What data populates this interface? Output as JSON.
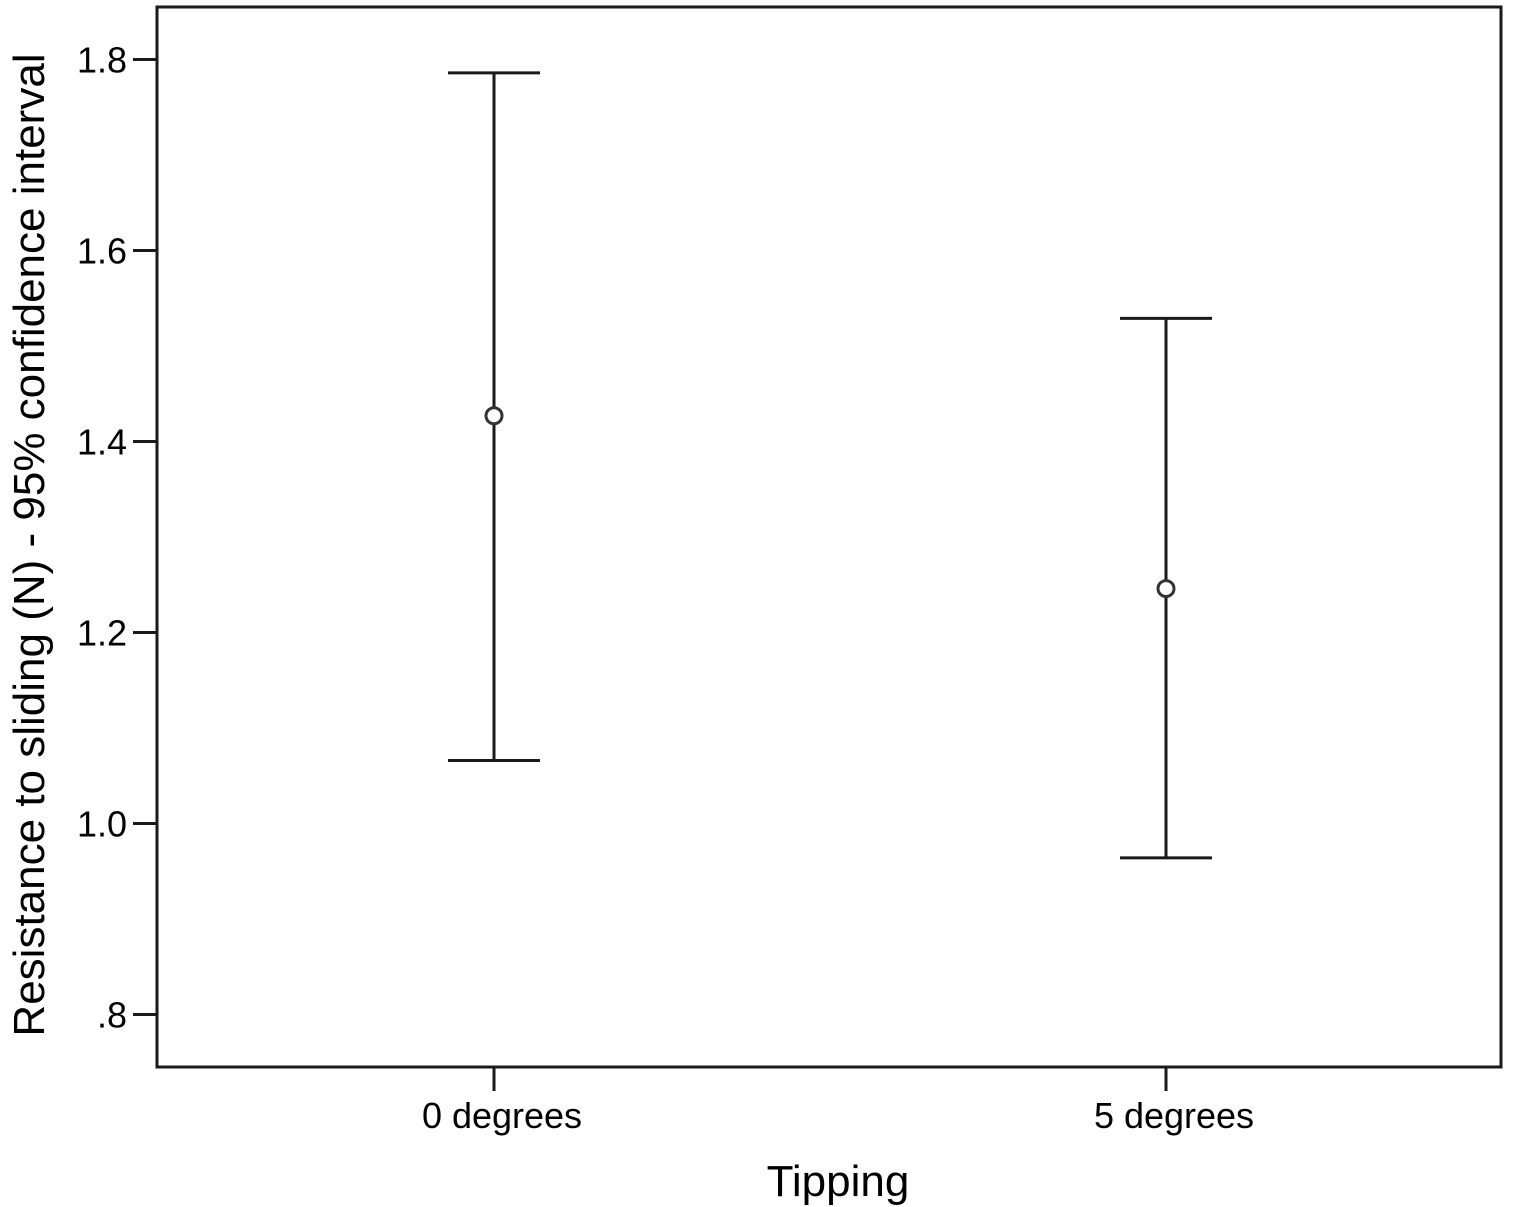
{
  "chart_data": {
    "type": "errorbar",
    "title": "",
    "xlabel": "Tipping",
    "ylabel": "Resistance to sliding (N) - 95% confidence interval",
    "categories": [
      "0 degrees",
      "5 degrees"
    ],
    "points": [
      {
        "category": "0 degrees",
        "mean": 1.427,
        "lower": 1.066,
        "upper": 1.786
      },
      {
        "category": "5 degrees",
        "mean": 1.246,
        "lower": 0.964,
        "upper": 1.529
      }
    ],
    "ylim": [
      0.745,
      1.855
    ],
    "yticks": [
      0.8,
      1.0,
      1.2,
      1.4,
      1.6,
      1.8
    ],
    "ytick_labels": [
      ".8",
      "1.0",
      "1.2",
      "1.4",
      "1.6",
      "1.8"
    ],
    "grid": false,
    "legend": "none",
    "colors": {
      "line": "#1a1a1a",
      "marker": "#333333",
      "frame": "#1a1a1a"
    }
  }
}
